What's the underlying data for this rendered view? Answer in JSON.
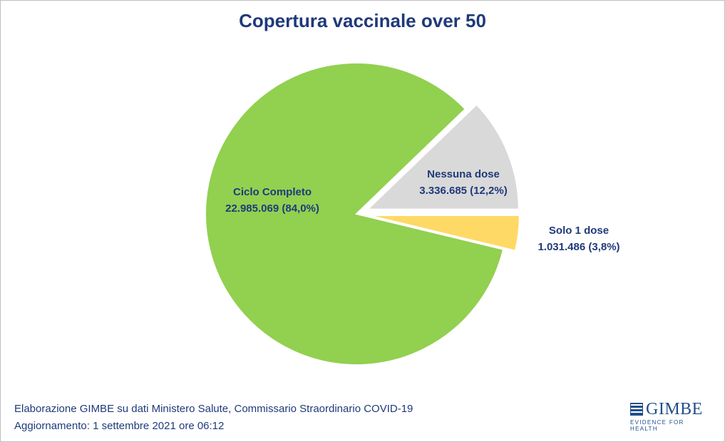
{
  "chart_data": {
    "type": "pie",
    "title": "Copertura vaccinale over 50",
    "slices": [
      {
        "label": "Nessuna dose",
        "value": 3336685,
        "value_text": "3.336.685",
        "percent": 12.2,
        "percent_text": "(12,2%)",
        "color": "#d9d9d9",
        "exploded": true
      },
      {
        "label": "Solo 1 dose",
        "value": 1031486,
        "value_text": "1.031.486",
        "percent": 3.8,
        "percent_text": "(3,8%)",
        "color": "#ffd966",
        "exploded": true
      },
      {
        "label": "Ciclo Completo",
        "value": 22985069,
        "value_text": "22.985.069",
        "percent": 84.0,
        "percent_text": "(84,0%)",
        "color": "#92d050",
        "exploded": false
      }
    ]
  },
  "footer": {
    "source": "Elaborazione GIMBE su dati Ministero Salute, Commissario Straordinario COVID-19",
    "update": "Aggiornamento: 1 settembre 2021 ore 06:12"
  },
  "logo": {
    "brand": "GIMBE",
    "tagline": "EVIDENCE FOR HEALTH"
  }
}
